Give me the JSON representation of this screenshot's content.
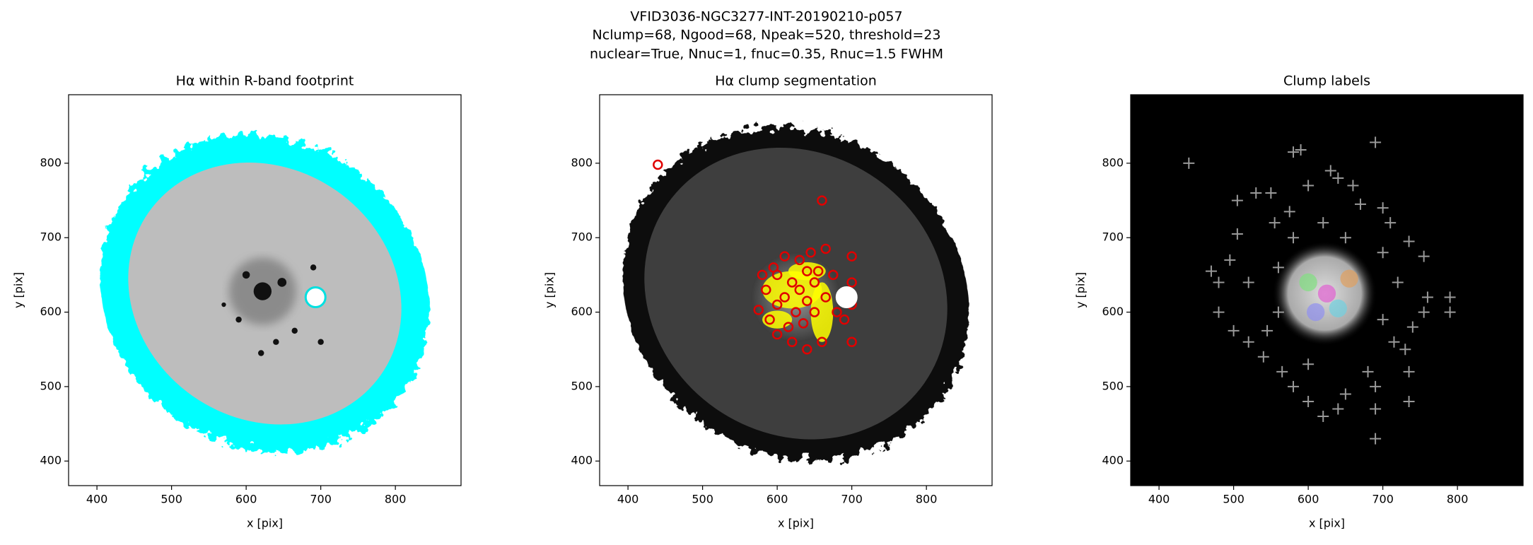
{
  "figure_title": [
    "VFID3036-NGC3277-INT-20190210-p057",
    "Nclump=68, Ngood=68, Npeak=520, threshold=23",
    "nuclear=True, Nnuc=1, fnuc=0.35, Rnuc=1.5 FWHM"
  ],
  "chart_data": [
    {
      "type": "footprint",
      "title": "Hα within R-band footprint",
      "xlabel": "x [pix]",
      "ylabel": "y [pix]",
      "xlim": [
        362,
        888
      ],
      "ylim": [
        367,
        892
      ],
      "xticks": [
        400,
        500,
        600,
        700,
        800
      ],
      "yticks": [
        400,
        500,
        600,
        700,
        800
      ],
      "nucleus": {
        "x": 693,
        "y": 620
      }
    },
    {
      "type": "segmentation",
      "title": "Hα clump segmentation",
      "xlabel": "x [pix]",
      "ylabel": "y [pix]",
      "xlim": [
        362,
        888
      ],
      "ylim": [
        367,
        892
      ],
      "xticks": [
        400,
        500,
        600,
        700,
        800
      ],
      "yticks": [
        400,
        500,
        600,
        700,
        800
      ],
      "nucleus": {
        "x": 693,
        "y": 620
      },
      "clumps": {
        "x": [
          440,
          660,
          575,
          600,
          620,
          630,
          610,
          640,
          650,
          590,
          600,
          620,
          640,
          660,
          680,
          700,
          700,
          690,
          665,
          645,
          630,
          610,
          595,
          585,
          600,
          625,
          650,
          665,
          700,
          700,
          615,
          635,
          580,
          655,
          675,
          640
        ],
        "y": [
          798,
          750,
          603,
          650,
          640,
          630,
          620,
          615,
          600,
          590,
          570,
          560,
          550,
          560,
          600,
          675,
          640,
          590,
          685,
          680,
          670,
          675,
          660,
          630,
          610,
          600,
          640,
          620,
          610,
          560,
          580,
          585,
          650,
          655,
          650,
          655
        ]
      }
    },
    {
      "type": "labels",
      "title": "Clump labels",
      "xlabel": "x [pix]",
      "ylabel": "y [pix]",
      "xlim": [
        362,
        888
      ],
      "ylim": [
        367,
        892
      ],
      "xticks": [
        400,
        500,
        600,
        700,
        800
      ],
      "yticks": [
        400,
        500,
        600,
        700,
        800
      ],
      "peaks": {
        "x": [
          440,
          580,
          590,
          690,
          630,
          505,
          530,
          505,
          470,
          480,
          495,
          520,
          550,
          555,
          575,
          600,
          640,
          660,
          670,
          700,
          710,
          735,
          755,
          760,
          790,
          790,
          755,
          740,
          730,
          735,
          735,
          690,
          690,
          640,
          650,
          620,
          600,
          580,
          565,
          540,
          520,
          500,
          545,
          690,
          715,
          700,
          720,
          480,
          560,
          620,
          580,
          650,
          700,
          560,
          680,
          600
        ],
        "y": [
          800,
          815,
          818,
          828,
          790,
          750,
          760,
          705,
          655,
          640,
          670,
          640,
          760,
          720,
          735,
          770,
          780,
          770,
          745,
          740,
          720,
          695,
          675,
          620,
          620,
          600,
          600,
          580,
          550,
          520,
          480,
          470,
          430,
          470,
          490,
          460,
          480,
          500,
          520,
          540,
          560,
          575,
          575,
          500,
          560,
          590,
          640,
          600,
          660,
          720,
          700,
          700,
          680,
          600,
          520,
          530
        ]
      }
    }
  ]
}
